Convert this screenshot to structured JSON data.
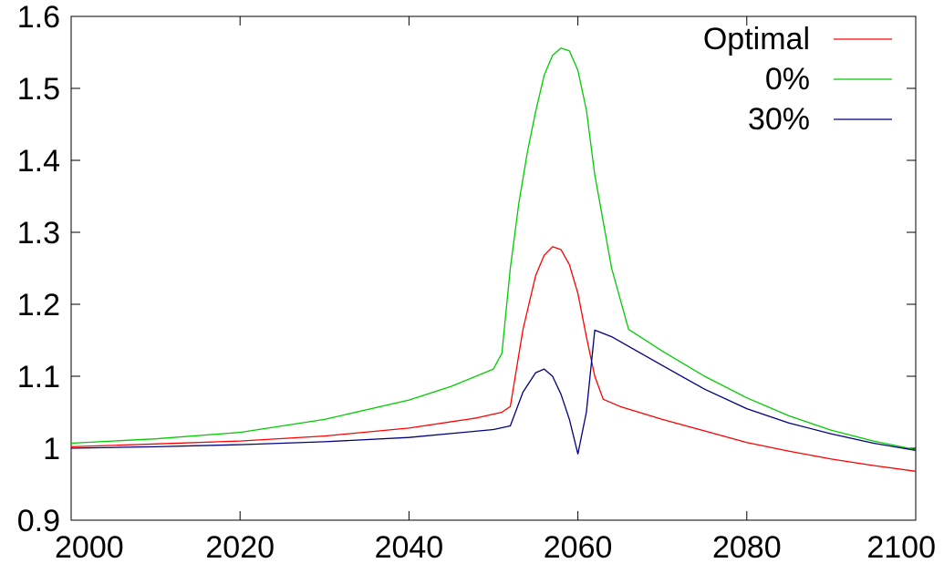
{
  "chart_data": {
    "type": "line",
    "title": "",
    "xlabel": "",
    "ylabel": "",
    "xlim": [
      2000,
      2100
    ],
    "ylim": [
      0.9,
      1.6
    ],
    "x_ticks": [
      "2000",
      "2020",
      "2040",
      "2060",
      "2080",
      "2100"
    ],
    "y_ticks": [
      "0.9",
      "1",
      "1.1",
      "1.2",
      "1.3",
      "1.4",
      "1.5",
      "1.6"
    ],
    "grid": false,
    "legend_position": "top-right",
    "series": [
      {
        "name": "Optimal",
        "color": "#ff0000",
        "points": [
          [
            2000,
            1.002
          ],
          [
            2010,
            1.006
          ],
          [
            2020,
            1.01
          ],
          [
            2030,
            1.017
          ],
          [
            2040,
            1.028
          ],
          [
            2048,
            1.042
          ],
          [
            2051,
            1.05
          ],
          [
            2052,
            1.058
          ],
          [
            2053.5,
            1.165
          ],
          [
            2055,
            1.24
          ],
          [
            2056,
            1.268
          ],
          [
            2057,
            1.28
          ],
          [
            2058,
            1.276
          ],
          [
            2059,
            1.255
          ],
          [
            2060,
            1.215
          ],
          [
            2061,
            1.155
          ],
          [
            2062,
            1.1
          ],
          [
            2063,
            1.068
          ],
          [
            2065,
            1.058
          ],
          [
            2070,
            1.04
          ],
          [
            2075,
            1.024
          ],
          [
            2080,
            1.008
          ],
          [
            2085,
            0.996
          ],
          [
            2090,
            0.985
          ],
          [
            2095,
            0.976
          ],
          [
            2100,
            0.968
          ]
        ]
      },
      {
        "name": "0%",
        "color": "#00cc00",
        "points": [
          [
            2000,
            1.007
          ],
          [
            2010,
            1.013
          ],
          [
            2020,
            1.022
          ],
          [
            2030,
            1.04
          ],
          [
            2040,
            1.067
          ],
          [
            2045,
            1.086
          ],
          [
            2050,
            1.11
          ],
          [
            2051,
            1.132
          ],
          [
            2052,
            1.25
          ],
          [
            2053,
            1.34
          ],
          [
            2054,
            1.41
          ],
          [
            2055,
            1.468
          ],
          [
            2056,
            1.518
          ],
          [
            2057,
            1.546
          ],
          [
            2058,
            1.556
          ],
          [
            2059,
            1.552
          ],
          [
            2060,
            1.525
          ],
          [
            2061,
            1.47
          ],
          [
            2062,
            1.38
          ],
          [
            2064,
            1.25
          ],
          [
            2066,
            1.165
          ],
          [
            2070,
            1.135
          ],
          [
            2075,
            1.1
          ],
          [
            2080,
            1.07
          ],
          [
            2085,
            1.045
          ],
          [
            2090,
            1.025
          ],
          [
            2095,
            1.01
          ],
          [
            2100,
            0.998
          ]
        ]
      },
      {
        "name": "30%",
        "color": "#000080",
        "points": [
          [
            2000,
            1.0
          ],
          [
            2010,
            1.002
          ],
          [
            2020,
            1.005
          ],
          [
            2030,
            1.009
          ],
          [
            2040,
            1.015
          ],
          [
            2050,
            1.026
          ],
          [
            2052,
            1.031
          ],
          [
            2053.5,
            1.078
          ],
          [
            2055,
            1.105
          ],
          [
            2056,
            1.11
          ],
          [
            2057,
            1.1
          ],
          [
            2058,
            1.075
          ],
          [
            2059,
            1.04
          ],
          [
            2060,
            0.992
          ],
          [
            2061,
            1.05
          ],
          [
            2062,
            1.164
          ],
          [
            2064,
            1.155
          ],
          [
            2070,
            1.115
          ],
          [
            2075,
            1.082
          ],
          [
            2080,
            1.055
          ],
          [
            2085,
            1.035
          ],
          [
            2090,
            1.02
          ],
          [
            2095,
            1.007
          ],
          [
            2100,
            0.997
          ]
        ]
      }
    ]
  }
}
